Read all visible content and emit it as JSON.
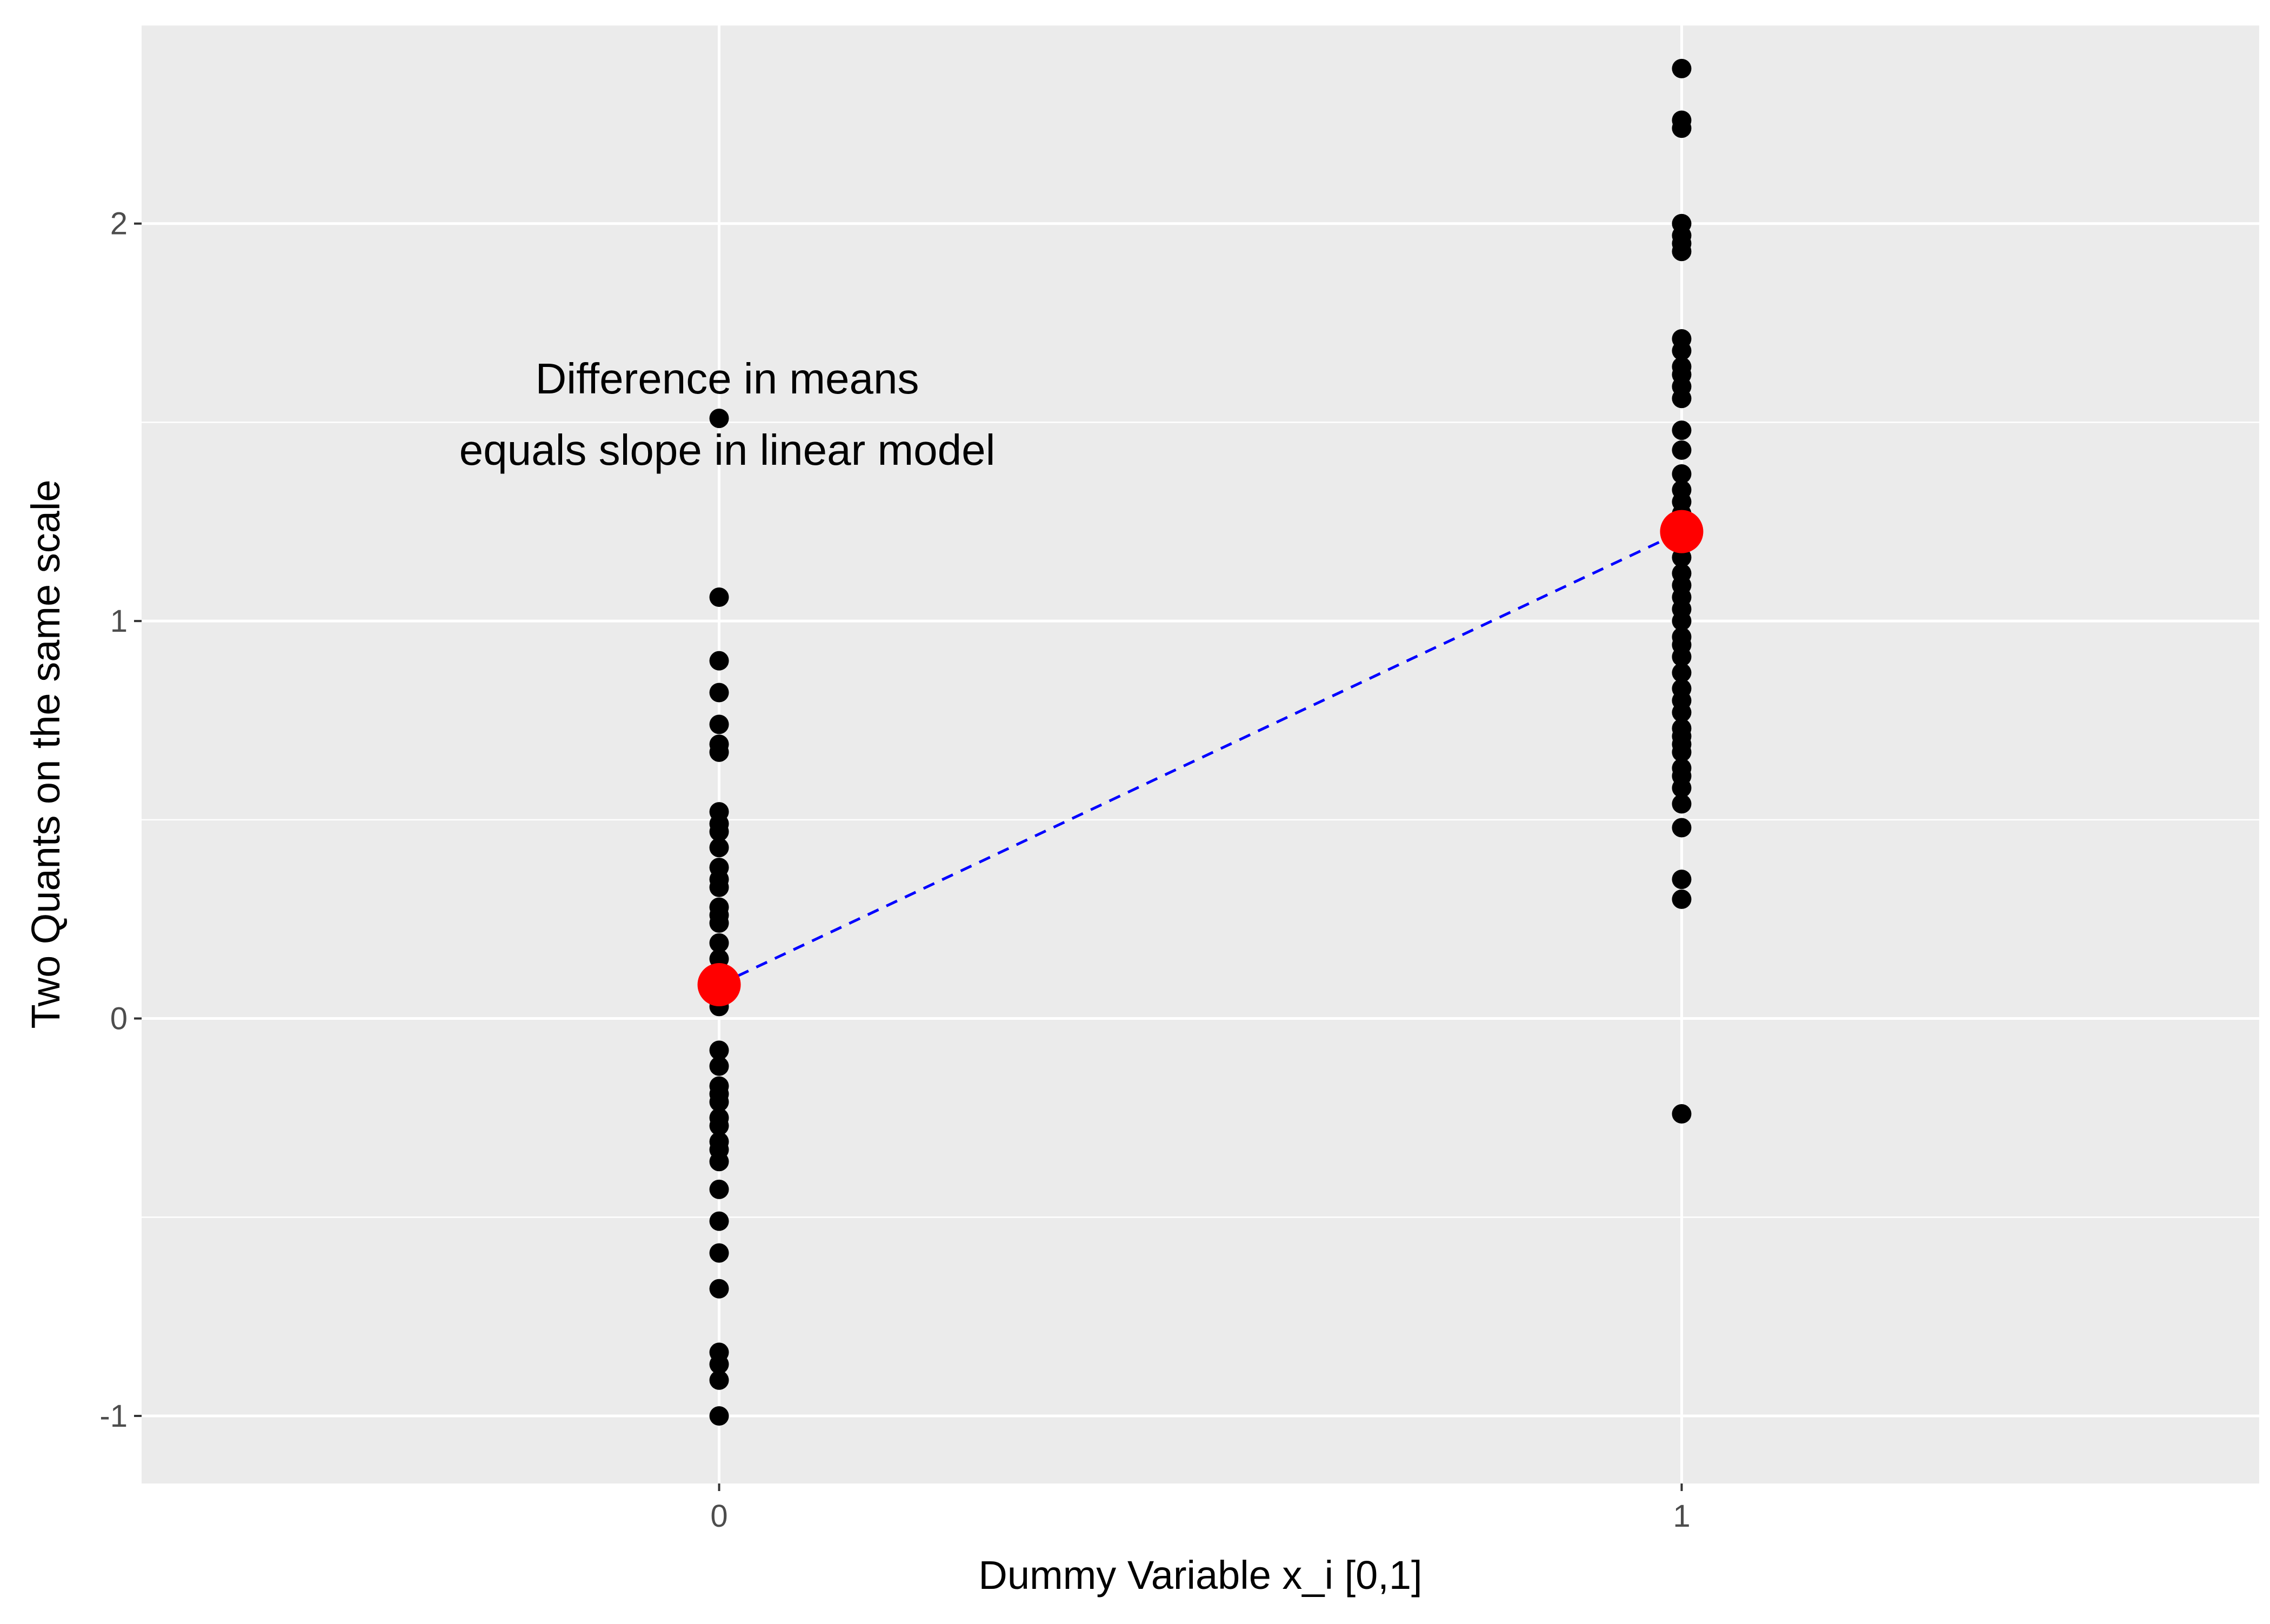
{
  "chart_data": {
    "type": "scatter",
    "title": "",
    "xlabel": "Dummy Variable x_i  [0,1]",
    "ylabel": "Two Quants on the same scale",
    "xlim": [
      -0.6,
      1.6
    ],
    "ylim": [
      -1.17,
      2.5
    ],
    "x_ticks": [
      0,
      1
    ],
    "x_tick_labels": [
      "0",
      "1"
    ],
    "y_ticks": [
      -1,
      0,
      1,
      2
    ],
    "y_tick_labels": [
      "-1",
      "0",
      "1",
      "2"
    ],
    "grid": true,
    "legend": "none",
    "background_color": "#ebebeb",
    "grid_color": "#ffffff",
    "point_color": "#000000",
    "mean_color": "#ff0000",
    "line_color": "#0000ff",
    "series": [
      {
        "x": 0,
        "values": [
          1.51,
          1.06,
          0.9,
          0.82,
          0.74,
          0.69,
          0.67,
          0.52,
          0.49,
          0.47,
          0.43,
          0.38,
          0.35,
          0.33,
          0.28,
          0.26,
          0.24,
          0.19,
          0.15,
          0.11,
          0.07,
          0.03,
          -0.08,
          -0.12,
          -0.17,
          -0.19,
          -0.21,
          -0.25,
          -0.27,
          -0.31,
          -0.33,
          -0.36,
          -0.43,
          -0.51,
          -0.59,
          -0.68,
          -0.84,
          -0.87,
          -0.91,
          -1.0
        ]
      },
      {
        "x": 1,
        "values": [
          2.39,
          2.26,
          2.24,
          2.0,
          1.97,
          1.95,
          1.93,
          1.71,
          1.68,
          1.64,
          1.62,
          1.59,
          1.56,
          1.48,
          1.43,
          1.37,
          1.33,
          1.3,
          1.27,
          1.23,
          1.19,
          1.16,
          1.12,
          1.09,
          1.06,
          1.03,
          1.0,
          0.96,
          0.94,
          0.91,
          0.87,
          0.83,
          0.8,
          0.77,
          0.73,
          0.71,
          0.69,
          0.67,
          0.63,
          0.61,
          0.58,
          0.54,
          0.48,
          0.35,
          0.3,
          -0.24
        ]
      }
    ],
    "means": [
      {
        "x": 0,
        "y": 0.085
      },
      {
        "x": 1,
        "y": 1.225
      }
    ],
    "annotation": {
      "lines": [
        "Difference in means",
        "equals slope in linear model"
      ],
      "x": 0,
      "y": 1.48
    }
  }
}
